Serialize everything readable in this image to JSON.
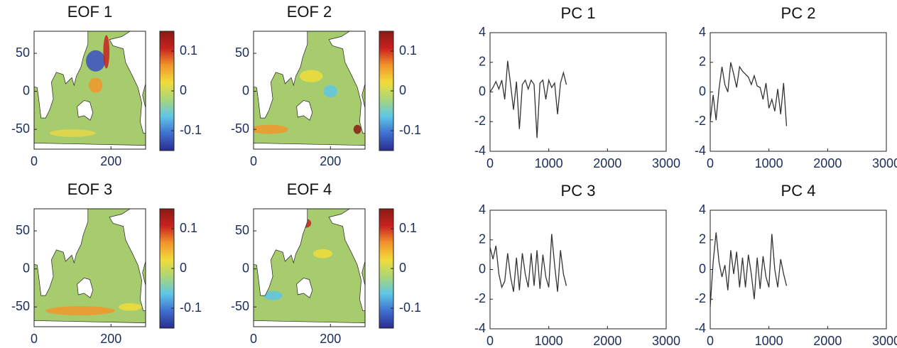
{
  "chart_data": [
    {
      "type": "heatmap",
      "title": "EOF 1",
      "xlim": [
        0,
        290
      ],
      "ylim": [
        -76,
        79
      ],
      "xticks": [
        0,
        200
      ],
      "yticks": [
        -50,
        0,
        50
      ],
      "colorbar_lim": [
        -0.15,
        0.15
      ],
      "colorbar_ticks": [
        -0.1,
        0,
        0.1
      ],
      "colormap": [
        "#2b2c8e",
        "#3f6fd0",
        "#5ec6e6",
        "#a9d67a",
        "#f0dc3a",
        "#f2952b",
        "#c8211f",
        "#8a1a14"
      ]
    },
    {
      "type": "heatmap",
      "title": "EOF 2",
      "xlim": [
        0,
        290
      ],
      "ylim": [
        -76,
        79
      ],
      "xticks": [
        0,
        200
      ],
      "yticks": [
        -50,
        0,
        50
      ],
      "colorbar_lim": [
        -0.15,
        0.15
      ],
      "colorbar_ticks": [
        -0.1,
        0,
        0.1
      ],
      "colormap": [
        "#2b2c8e",
        "#3f6fd0",
        "#5ec6e6",
        "#a9d67a",
        "#f0dc3a",
        "#f2952b",
        "#c8211f",
        "#8a1a14"
      ]
    },
    {
      "type": "heatmap",
      "title": "EOF 3",
      "xlim": [
        0,
        290
      ],
      "ylim": [
        -76,
        79
      ],
      "xticks": [
        0,
        200
      ],
      "yticks": [
        -50,
        0,
        50
      ],
      "colorbar_lim": [
        -0.15,
        0.15
      ],
      "colorbar_ticks": [
        -0.1,
        0,
        0.1
      ],
      "colormap": [
        "#2b2c8e",
        "#3f6fd0",
        "#5ec6e6",
        "#a9d67a",
        "#f0dc3a",
        "#f2952b",
        "#c8211f",
        "#8a1a14"
      ]
    },
    {
      "type": "heatmap",
      "title": "EOF 4",
      "xlim": [
        0,
        290
      ],
      "ylim": [
        -76,
        79
      ],
      "xticks": [
        0,
        200
      ],
      "yticks": [
        -50,
        0,
        50
      ],
      "colorbar_lim": [
        -0.15,
        0.15
      ],
      "colorbar_ticks": [
        -0.1,
        0,
        0.1
      ],
      "colormap": [
        "#2b2c8e",
        "#3f6fd0",
        "#5ec6e6",
        "#a9d67a",
        "#f0dc3a",
        "#f2952b",
        "#c8211f",
        "#8a1a14"
      ]
    },
    {
      "type": "line",
      "title": "PC 1",
      "color": "#333333",
      "xlim": [
        0,
        3000
      ],
      "ylim": [
        -4,
        4
      ],
      "xticks": [
        0,
        1000,
        2000,
        3000
      ],
      "yticks": [
        -4,
        -2,
        0,
        2,
        4
      ],
      "x": [
        0,
        50,
        100,
        150,
        200,
        250,
        300,
        350,
        400,
        450,
        500,
        550,
        600,
        650,
        700,
        750,
        800,
        850,
        900,
        950,
        1000,
        1050,
        1100,
        1150,
        1200,
        1250,
        1300
      ],
      "values": [
        0,
        0.3,
        0.7,
        0.2,
        0.8,
        -0.5,
        2.1,
        0.5,
        -1.2,
        0.7,
        -2.5,
        0.5,
        0.8,
        0.2,
        0.8,
        0.5,
        -3.1,
        0.6,
        0.8,
        -0.5,
        0.8,
        0.3,
        0.6,
        -1.5,
        0.6,
        1.3,
        0.5
      ]
    },
    {
      "type": "line",
      "title": "PC 2",
      "color": "#333333",
      "xlim": [
        0,
        3000
      ],
      "ylim": [
        -4,
        4
      ],
      "xticks": [
        0,
        1000,
        2000,
        3000
      ],
      "yticks": [
        -4,
        -2,
        0,
        2,
        4
      ],
      "x": [
        0,
        50,
        100,
        150,
        200,
        250,
        300,
        350,
        400,
        450,
        500,
        550,
        600,
        650,
        700,
        750,
        800,
        850,
        900,
        950,
        1000,
        1050,
        1100,
        1150,
        1200,
        1250,
        1300
      ],
      "values": [
        -2,
        -0.2,
        -1.9,
        0.2,
        1.7,
        0.5,
        0,
        2,
        1.2,
        0.3,
        1.7,
        1.4,
        1.2,
        1,
        0.5,
        1.1,
        0.4,
        0.3,
        -0.5,
        0.6,
        -1.1,
        -0.5,
        -1.3,
        0.2,
        -1.5,
        0.6,
        -2.3
      ]
    },
    {
      "type": "line",
      "title": "PC 3",
      "color": "#333333",
      "xlim": [
        0,
        3000
      ],
      "ylim": [
        -4,
        4
      ],
      "xticks": [
        0,
        1000,
        2000,
        3000
      ],
      "yticks": [
        -4,
        -2,
        0,
        2,
        4
      ],
      "x": [
        0,
        50,
        100,
        150,
        200,
        250,
        300,
        350,
        400,
        450,
        500,
        550,
        600,
        650,
        700,
        750,
        800,
        850,
        900,
        950,
        1000,
        1050,
        1100,
        1150,
        1200,
        1250,
        1300
      ],
      "values": [
        1.5,
        0.7,
        1.6,
        -0.3,
        -1.2,
        -0.8,
        1.1,
        -0.5,
        -1.5,
        0.8,
        -1.4,
        1.1,
        -0.3,
        -1.2,
        1.1,
        -1.1,
        1.3,
        -1.3,
        1.0,
        -0.5,
        -1.2,
        2.4,
        0.3,
        -1.5,
        1.3,
        -0.3,
        -1.1
      ]
    },
    {
      "type": "line",
      "title": "PC 4",
      "color": "#333333",
      "xlim": [
        0,
        3000
      ],
      "ylim": [
        -4,
        4
      ],
      "xticks": [
        0,
        1000,
        2000,
        3000
      ],
      "yticks": [
        -4,
        -2,
        0,
        2,
        4
      ],
      "x": [
        0,
        50,
        100,
        150,
        200,
        250,
        300,
        350,
        400,
        450,
        500,
        550,
        600,
        650,
        700,
        750,
        800,
        850,
        900,
        950,
        1000,
        1050,
        1100,
        1150,
        1200,
        1250,
        1300
      ],
      "values": [
        -2.5,
        0.5,
        2.5,
        0.5,
        -0.5,
        0.3,
        -1.4,
        1.3,
        -0.3,
        1.2,
        -1.2,
        0.8,
        -1.2,
        1.0,
        -0.3,
        -2.0,
        0.8,
        -1.3,
        0.9,
        -0.5,
        -1.2,
        2.4,
        0.0,
        -1.2,
        0.7,
        -0.3,
        -1.1
      ]
    }
  ]
}
